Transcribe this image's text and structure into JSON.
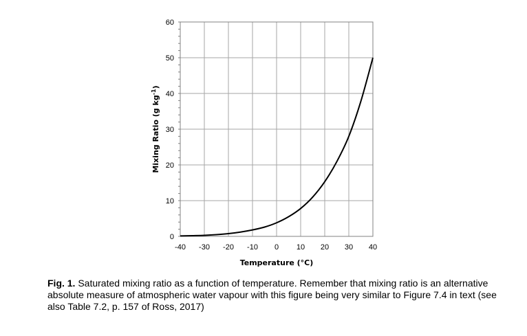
{
  "chart_data": {
    "type": "line",
    "xlabel": "Temperature (°C)",
    "ylabel_main": "Mixing Ratio (g kg",
    "ylabel_sup": "-1",
    "ylabel_tail": ")",
    "xlim": [
      -40,
      40
    ],
    "ylim": [
      0,
      60
    ],
    "xticks": [
      -40,
      -30,
      -20,
      -10,
      0,
      10,
      20,
      30,
      40
    ],
    "yticks": [
      0,
      10,
      20,
      30,
      40,
      50,
      60
    ],
    "grid": true,
    "legend": "none",
    "line_color": "#000000",
    "grid_color": "#a6a6a6",
    "series": [
      {
        "x": [
          -40,
          -35,
          -30,
          -25,
          -20,
          -15,
          -10,
          -5,
          0,
          5,
          10,
          15,
          20,
          25,
          30,
          35,
          40
        ],
        "y": [
          0.12,
          0.2,
          0.3,
          0.48,
          0.76,
          1.2,
          1.8,
          2.6,
          3.8,
          5.5,
          7.8,
          11.0,
          15.3,
          20.9,
          28.0,
          37.8,
          50.0
        ]
      }
    ]
  },
  "caption": {
    "label": "Fig. 1.",
    "text": "  Saturated mixing ratio as a function of temperature.  Remember that mixing ratio is an alternative absolute measure of atmospheric water vapour with this figure being very similar to Figure 7.4 in text (see also Table 7.2, p. 157 of Ross, 2017)"
  }
}
